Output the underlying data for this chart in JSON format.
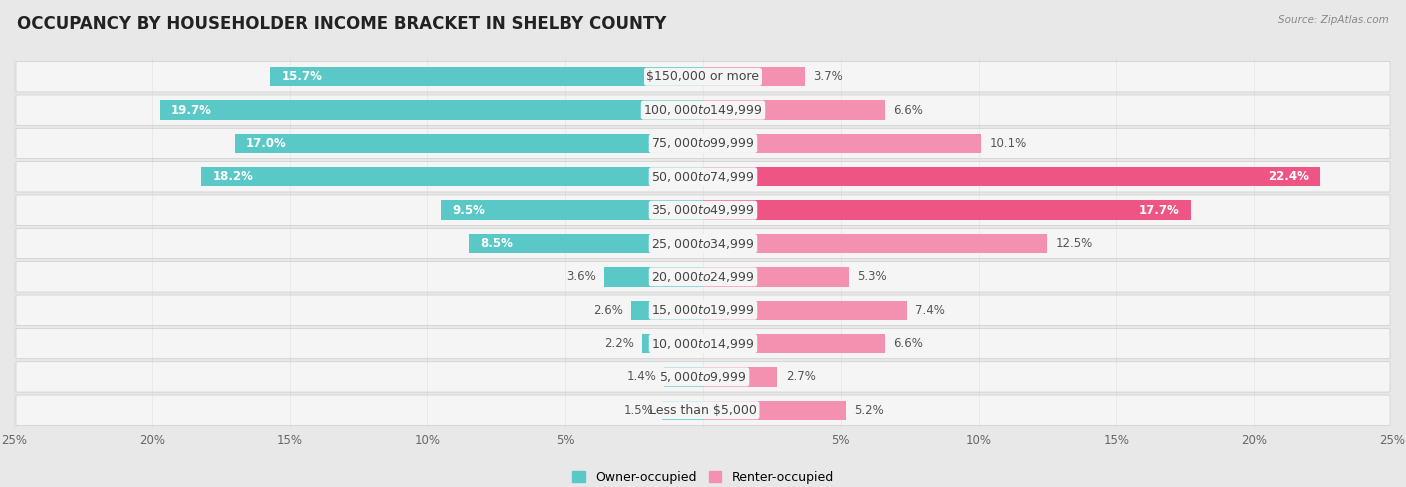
{
  "title": "OCCUPANCY BY HOUSEHOLDER INCOME BRACKET IN SHELBY COUNTY",
  "source": "Source: ZipAtlas.com",
  "categories": [
    "Less than $5,000",
    "$5,000 to $9,999",
    "$10,000 to $14,999",
    "$15,000 to $19,999",
    "$20,000 to $24,999",
    "$25,000 to $34,999",
    "$35,000 to $49,999",
    "$50,000 to $74,999",
    "$75,000 to $99,999",
    "$100,000 to $149,999",
    "$150,000 or more"
  ],
  "owner_values": [
    1.5,
    1.4,
    2.2,
    2.6,
    3.6,
    8.5,
    9.5,
    18.2,
    17.0,
    19.7,
    15.7
  ],
  "renter_values": [
    5.2,
    2.7,
    6.6,
    7.4,
    5.3,
    12.5,
    17.7,
    22.4,
    10.1,
    6.6,
    3.7
  ],
  "owner_color": "#5BC8C8",
  "renter_color": "#F490B0",
  "renter_color_dark": "#EE5585",
  "background_color": "#e8e8e8",
  "row_bg_color": "#f5f5f5",
  "xlim": 25.0,
  "legend_owner": "Owner-occupied",
  "legend_renter": "Renter-occupied",
  "title_fontsize": 12,
  "label_fontsize": 9,
  "value_fontsize": 8.5,
  "owner_label_threshold": 8.0,
  "renter_label_threshold": 17.0
}
